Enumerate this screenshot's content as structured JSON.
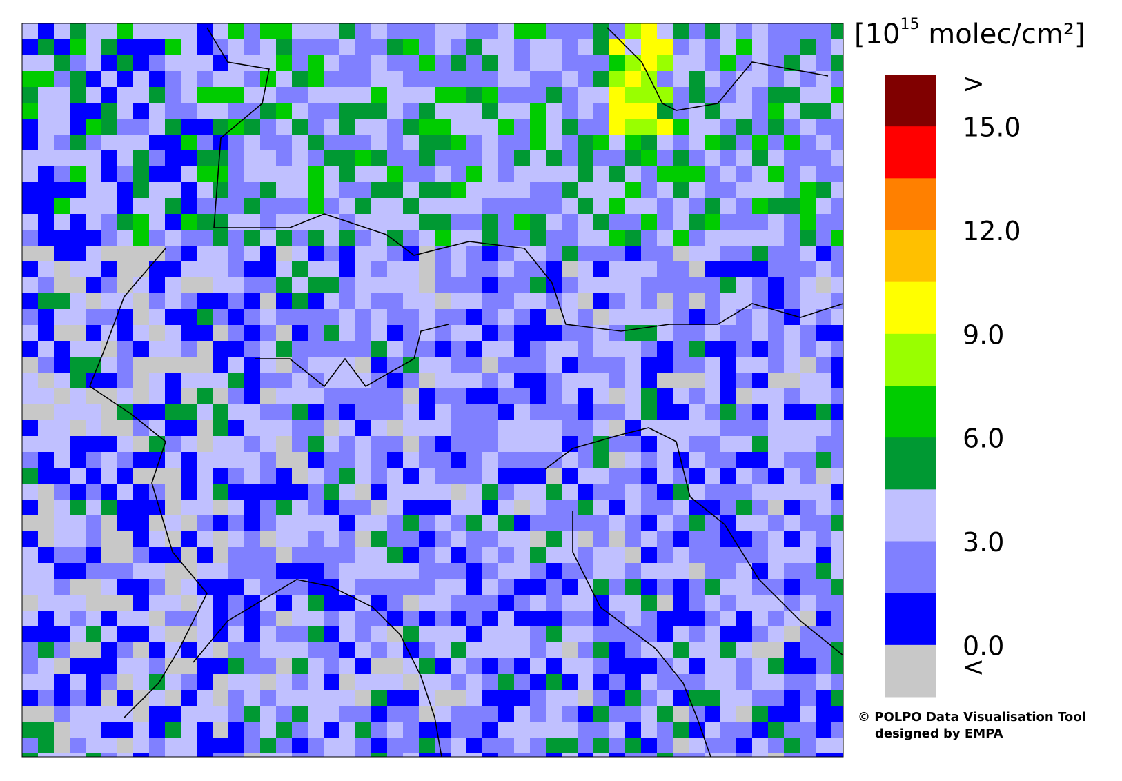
{
  "colorbar": {
    "unit": {
      "base": "[10",
      "exponent": "15",
      "rest": " molec/cm²]"
    },
    "colors": [
      "#800000",
      "#ff0000",
      "#ff8000",
      "#ffc000",
      "#ffff00",
      "#99ff00",
      "#00cc00",
      "#009933",
      "#c0c0ff",
      "#8080ff",
      "#0000ff",
      "#c8c8c8"
    ],
    "labels": [
      ">",
      "15.0",
      "12.0",
      "9.0",
      "6.0",
      "3.0",
      "0.0",
      "<"
    ]
  },
  "credit": {
    "line1": "© POLPO Data Visualisation Tool",
    "line2": "designed by EMPA"
  }
}
